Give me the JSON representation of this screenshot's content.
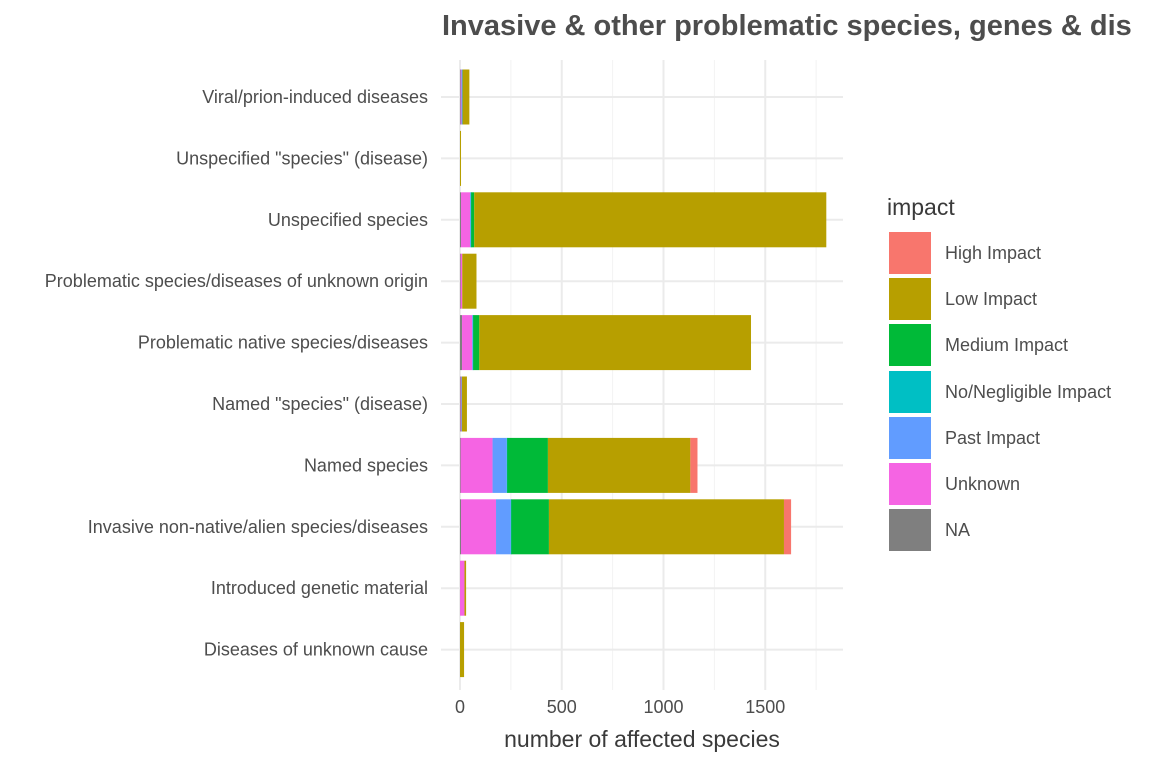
{
  "chart_data": {
    "type": "bar",
    "orientation": "horizontal",
    "stacked": true,
    "title": "Invasive & other problematic species, genes & dis",
    "xlabel": "number of affected species",
    "ylabel": "",
    "xlim": [
      0,
      1870
    ],
    "xticks": [
      "0",
      "500",
      "1000",
      "1500"
    ],
    "grid": true,
    "legend_title": "impact",
    "legend_position": "right",
    "categories": [
      "Viral/prion-induced diseases",
      "Unspecified \"species\" (disease)",
      "Unspecified species",
      "Problematic species/diseases of unknown origin",
      "Problematic native species/diseases",
      "Named \"species\" (disease)",
      "Named species",
      "Invasive non-native/alien species/diseases",
      "Introduced genetic material",
      "Diseases of unknown cause"
    ],
    "series": [
      {
        "name": "NA",
        "color": "#7f7f7f",
        "values": [
          3,
          0,
          5,
          3,
          10,
          3,
          3,
          5,
          0,
          0
        ]
      },
      {
        "name": "Unknown",
        "color": "#f564e3",
        "values": [
          4,
          0,
          45,
          8,
          50,
          3,
          157,
          172,
          22,
          0
        ]
      },
      {
        "name": "Past Impact",
        "color": "#619cff",
        "values": [
          5,
          0,
          3,
          0,
          3,
          3,
          70,
          73,
          0,
          0
        ]
      },
      {
        "name": "No/Negligible Impact",
        "color": "#00bfc4",
        "values": [
          0,
          0,
          2,
          0,
          2,
          0,
          2,
          2,
          0,
          0
        ]
      },
      {
        "name": "Medium Impact",
        "color": "#00ba38",
        "values": [
          1,
          0,
          15,
          0,
          30,
          0,
          200,
          185,
          0,
          0
        ]
      },
      {
        "name": "Low Impact",
        "color": "#b79f00",
        "values": [
          33,
          5,
          1730,
          70,
          1335,
          25,
          700,
          1155,
          8,
          20
        ]
      },
      {
        "name": "High Impact",
        "color": "#f8766d",
        "values": [
          0,
          0,
          0,
          0,
          0,
          0,
          35,
          35,
          0,
          0
        ]
      }
    ]
  },
  "legend": {
    "title": "impact",
    "order": [
      "High Impact",
      "Low Impact",
      "Medium Impact",
      "No/Negligible Impact",
      "Past Impact",
      "Unknown",
      "NA"
    ]
  }
}
